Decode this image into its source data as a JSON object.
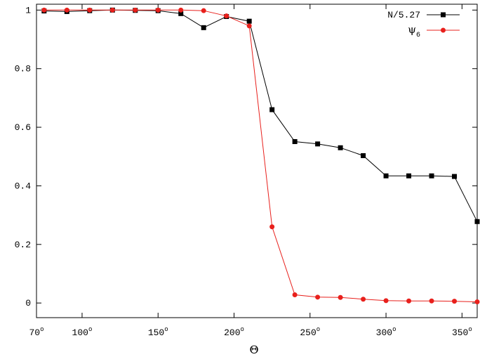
{
  "chart_data": {
    "type": "line",
    "xlabel": "Θ",
    "ylabel": "",
    "xlim": [
      70,
      360
    ],
    "ylim": [
      -0.05,
      1.02
    ],
    "grid": false,
    "legend_position": "top-right",
    "x_ticks": [
      {
        "value": 70,
        "base": "70",
        "sup": "o"
      },
      {
        "value": 100,
        "base": "100",
        "sup": "o"
      },
      {
        "value": 150,
        "base": "150",
        "sup": "o"
      },
      {
        "value": 200,
        "base": "200",
        "sup": "o"
      },
      {
        "value": 250,
        "base": "250",
        "sup": "o"
      },
      {
        "value": 300,
        "base": "300",
        "sup": "o"
      },
      {
        "value": 350,
        "base": "350",
        "sup": "o"
      }
    ],
    "y_ticks": [
      {
        "value": 0,
        "label": "0"
      },
      {
        "value": 0.2,
        "label": "0.2"
      },
      {
        "value": 0.4,
        "label": "0.4"
      },
      {
        "value": 0.6,
        "label": "0.6"
      },
      {
        "value": 0.8,
        "label": "0.8"
      },
      {
        "value": 1,
        "label": "1"
      }
    ],
    "series": [
      {
        "name": "N/5.27",
        "color": "#000000",
        "marker": "square",
        "x": [
          75,
          90,
          105,
          120,
          135,
          150,
          165,
          180,
          195,
          210,
          225,
          240,
          255,
          270,
          285,
          300,
          315,
          330,
          345,
          360
        ],
        "values": [
          0.997,
          0.995,
          0.998,
          1.0,
          0.999,
          0.998,
          0.988,
          0.94,
          0.978,
          0.962,
          0.66,
          0.551,
          0.543,
          0.53,
          0.503,
          0.434,
          0.434,
          0.434,
          0.432,
          0.278
        ]
      },
      {
        "name": "ψ",
        "name_subscript": "6",
        "color": "#e8201c",
        "marker": "circle",
        "x": [
          75,
          90,
          105,
          120,
          135,
          150,
          165,
          180,
          195,
          210,
          225,
          240,
          255,
          270,
          285,
          300,
          315,
          330,
          345,
          360
        ],
        "values": [
          1.0,
          1.0,
          1.0,
          1.0,
          1.0,
          1.0,
          1.0,
          0.998,
          0.98,
          0.946,
          0.26,
          0.028,
          0.02,
          0.019,
          0.013,
          0.008,
          0.007,
          0.007,
          0.006,
          0.004
        ]
      }
    ]
  }
}
